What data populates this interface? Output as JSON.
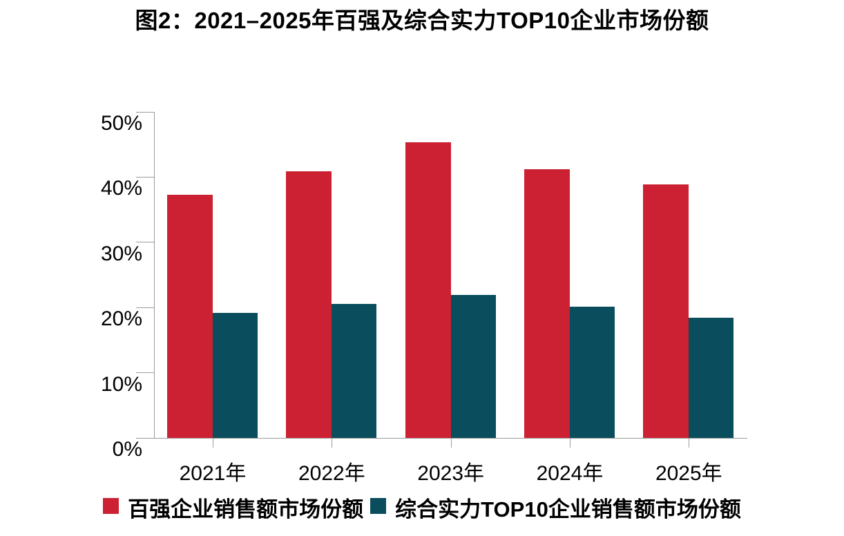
{
  "title": "图2：2021–2025年百强及综合实力TOP10企业市场份额",
  "chart_data": {
    "type": "bar",
    "title": "图2：2021–2025年百强及综合实力TOP10企业市场份额",
    "categories": [
      "2021年",
      "2022年",
      "2023年",
      "2024年",
      "2025年"
    ],
    "series": [
      {
        "key": "top100",
        "name": "百强企业销售额市场份额",
        "color": "#CB2132",
        "values": [
          37.3,
          40.9,
          45.3,
          41.2,
          38.9
        ]
      },
      {
        "key": "top10",
        "name": "综合实力TOP10企业销售额市场份额",
        "color": "#0A4D5C",
        "values": [
          19.2,
          20.5,
          21.9,
          20.1,
          18.4
        ]
      }
    ],
    "unit": "%",
    "xlabel": "",
    "ylabel": "",
    "ylim": [
      0,
      50
    ],
    "ytick_step": 10,
    "ytick_labels": [
      "0%",
      "10%",
      "20%",
      "30%",
      "40%",
      "50%"
    ],
    "grid": false,
    "legend_position": "bottom",
    "axis_color": "#9c9c9c",
    "text_color": "#000000",
    "background": "#ffffff"
  }
}
